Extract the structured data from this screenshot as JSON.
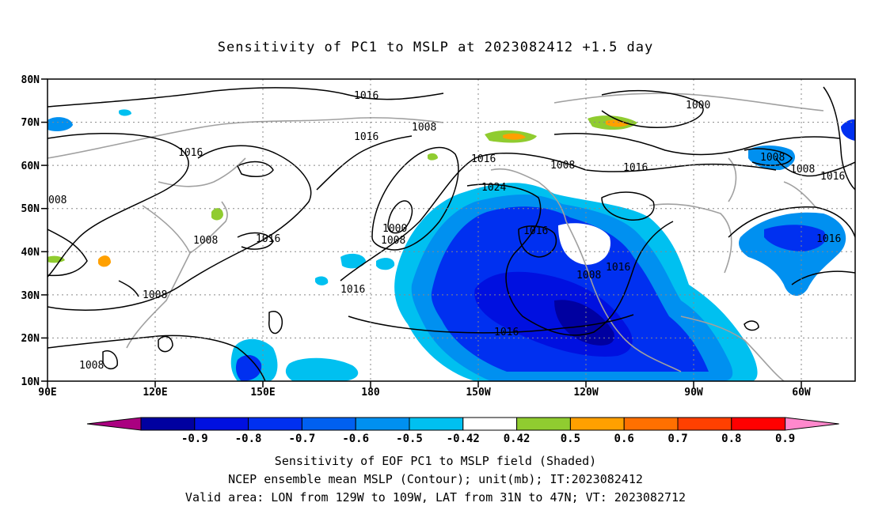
{
  "title": "Sensitivity of PC1 to MSLP at 2023082412 +1.5 day",
  "lat_labels": [
    "80N",
    "70N",
    "60N",
    "50N",
    "40N",
    "30N",
    "20N",
    "10N"
  ],
  "lon_labels": [
    "90E",
    "120E",
    "150E",
    "180",
    "150W",
    "120W",
    "90W",
    "60W"
  ],
  "contour_labels": [
    {
      "text": "1016"
    },
    {
      "text": "1016"
    },
    {
      "text": "1008"
    },
    {
      "text": "1016"
    },
    {
      "text": "1000"
    },
    {
      "text": "1008"
    },
    {
      "text": "1016"
    },
    {
      "text": "1024"
    },
    {
      "text": "1008"
    },
    {
      "text": "1016"
    },
    {
      "text": "1000"
    },
    {
      "text": "1008"
    },
    {
      "text": "1016"
    },
    {
      "text": "1016"
    },
    {
      "text": "1016"
    },
    {
      "text": "1008"
    },
    {
      "text": "1016"
    },
    {
      "text": "1016"
    },
    {
      "text": "1008"
    },
    {
      "text": "1008"
    },
    {
      "text": "1016"
    },
    {
      "text": "1008"
    },
    {
      "text": "008"
    }
  ],
  "colorbar": {
    "colors": [
      "#aa0080",
      "#0000a0",
      "#0010e0",
      "#0030f0",
      "#0060f0",
      "#0090f0",
      "#00c0f0",
      "#ffffff",
      "#90cc30",
      "#ffa000",
      "#ff7000",
      "#ff4000",
      "#ff0000",
      "#ff88cc"
    ],
    "labels": [
      "-0.9",
      "-0.8",
      "-0.7",
      "-0.6",
      "-0.5",
      "-0.42",
      "0.42",
      "0.5",
      "0.6",
      "0.7",
      "0.8",
      "0.9"
    ]
  },
  "caption": {
    "line1": "Sensitivity of EOF PC1 to MSLP field (Shaded)",
    "line2": "NCEP ensemble mean MSLP (Contour); unit(mb); IT:2023082412",
    "line3": "Valid area: LON from 129W to 109W, LAT from 31N to 47N; VT: 2023082712"
  }
}
